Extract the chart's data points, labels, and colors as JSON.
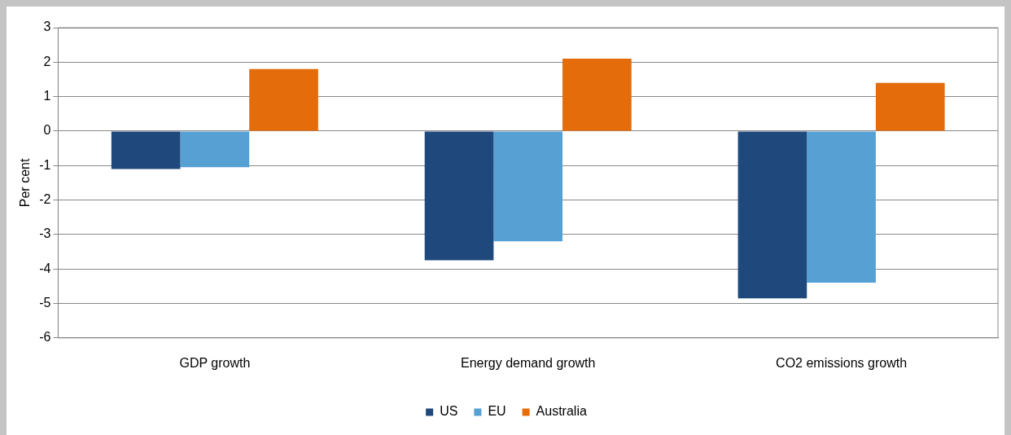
{
  "chart_data": {
    "type": "bar",
    "ylabel": "Per cent",
    "categories": [
      "GDP growth",
      "Energy demand growth",
      "CO2 emissions growth"
    ],
    "series": [
      {
        "name": "US",
        "color": "#1f497d",
        "values": [
          -1.1,
          -3.75,
          -4.85
        ]
      },
      {
        "name": "EU",
        "color": "#56a0d3",
        "values": [
          -1.05,
          -3.2,
          -4.4
        ]
      },
      {
        "name": "Australia",
        "color": "#e46c0a",
        "values": [
          1.8,
          2.1,
          1.4
        ]
      }
    ],
    "ylim": [
      -6,
      3
    ],
    "yticks": [
      -6,
      -5,
      -4,
      -3,
      -2,
      -1,
      0,
      1,
      2,
      3
    ],
    "grid": "y",
    "legend": "bottom"
  }
}
